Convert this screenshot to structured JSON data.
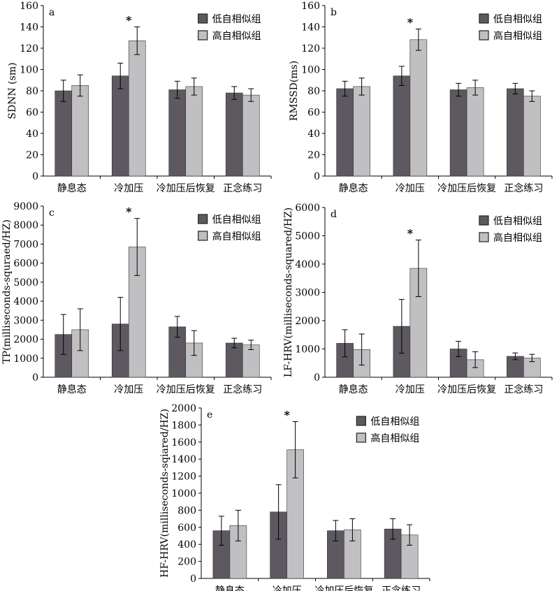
{
  "chart_data": [
    {
      "type": "bar",
      "panel_label": "a",
      "ylabel": "SDNN (sm)",
      "ylim": [
        0,
        160
      ],
      "ystep": 20,
      "categories": [
        "静息态",
        "冷加压",
        "冷加压后恢复",
        "正念练习"
      ],
      "series": [
        {
          "name": "低自相似组",
          "color": "#5e5960",
          "values": [
            80,
            94,
            81,
            78
          ],
          "errors": [
            10,
            12,
            8,
            6
          ]
        },
        {
          "name": "高自相似组",
          "color": "#c0c0c2",
          "values": [
            85,
            127,
            84,
            76
          ],
          "errors": [
            10,
            13,
            8,
            6
          ]
        }
      ],
      "annotations": [
        {
          "text": "*",
          "category": "冷加压"
        }
      ],
      "legend": "top-right"
    },
    {
      "type": "bar",
      "panel_label": "b",
      "ylabel": "RMSSD(ms)",
      "ylim": [
        0,
        160
      ],
      "ystep": 20,
      "categories": [
        "静息态",
        "冷加压",
        "冷加压后恢复",
        "正念练习"
      ],
      "series": [
        {
          "name": "低自相似组",
          "color": "#5e5960",
          "values": [
            82,
            94,
            81,
            82
          ],
          "errors": [
            7,
            9,
            6,
            5
          ]
        },
        {
          "name": "高自相似组",
          "color": "#c0c0c2",
          "values": [
            84,
            128,
            83,
            75
          ],
          "errors": [
            8,
            10,
            7,
            5
          ]
        }
      ],
      "annotations": [
        {
          "text": "*",
          "category": "冷加压"
        }
      ],
      "legend": "top-right"
    },
    {
      "type": "bar",
      "panel_label": "c",
      "ylabel": "TP(milliseconds-squraed/HZ)",
      "ylim": [
        0,
        9000
      ],
      "ystep": 1000,
      "categories": [
        "静息态",
        "冷加压",
        "冷加压后恢复",
        "正念练习"
      ],
      "series": [
        {
          "name": "低自相似组",
          "color": "#5e5960",
          "values": [
            2250,
            2800,
            2650,
            1800
          ],
          "errors": [
            1050,
            1400,
            550,
            250
          ]
        },
        {
          "name": "高自相似组",
          "color": "#c0c0c2",
          "values": [
            2500,
            6850,
            1800,
            1700
          ],
          "errors": [
            1100,
            1500,
            650,
            250
          ]
        }
      ],
      "annotations": [
        {
          "text": "*",
          "category": "冷加压"
        }
      ],
      "legend": "top-right"
    },
    {
      "type": "bar",
      "panel_label": "d",
      "ylabel": "LF-HRV(milliseconds-squared/HZ)",
      "ylim": [
        0,
        6000
      ],
      "ystep": 1000,
      "categories": [
        "静息态",
        "冷加压",
        "冷加压后恢复",
        "正念练习"
      ],
      "series": [
        {
          "name": "低自相似组",
          "color": "#5e5960",
          "values": [
            1200,
            1800,
            1000,
            740
          ],
          "errors": [
            480,
            950,
            270,
            120
          ]
        },
        {
          "name": "高自相似组",
          "color": "#c0c0c2",
          "values": [
            980,
            3850,
            620,
            680
          ],
          "errors": [
            550,
            1000,
            280,
            130
          ]
        }
      ],
      "annotations": [
        {
          "text": "*",
          "category": "冷加压"
        }
      ],
      "legend": "top-right"
    },
    {
      "type": "bar",
      "panel_label": "e",
      "ylabel": "HF-HRV(milliseconds-sqiared/HZ)",
      "ylim": [
        0,
        2000
      ],
      "ystep": 200,
      "categories": [
        "静息态",
        "冷加压",
        "冷加压后恢复",
        "正念练习"
      ],
      "series": [
        {
          "name": "低自相似组",
          "color": "#5e5960",
          "values": [
            560,
            780,
            560,
            580
          ],
          "errors": [
            170,
            320,
            120,
            120
          ]
        },
        {
          "name": "高自相似组",
          "color": "#c0c0c2",
          "values": [
            620,
            1510,
            570,
            510
          ],
          "errors": [
            180,
            330,
            130,
            120
          ]
        }
      ],
      "annotations": [
        {
          "text": "*",
          "category": "冷加压"
        }
      ],
      "legend": "top-right"
    }
  ]
}
